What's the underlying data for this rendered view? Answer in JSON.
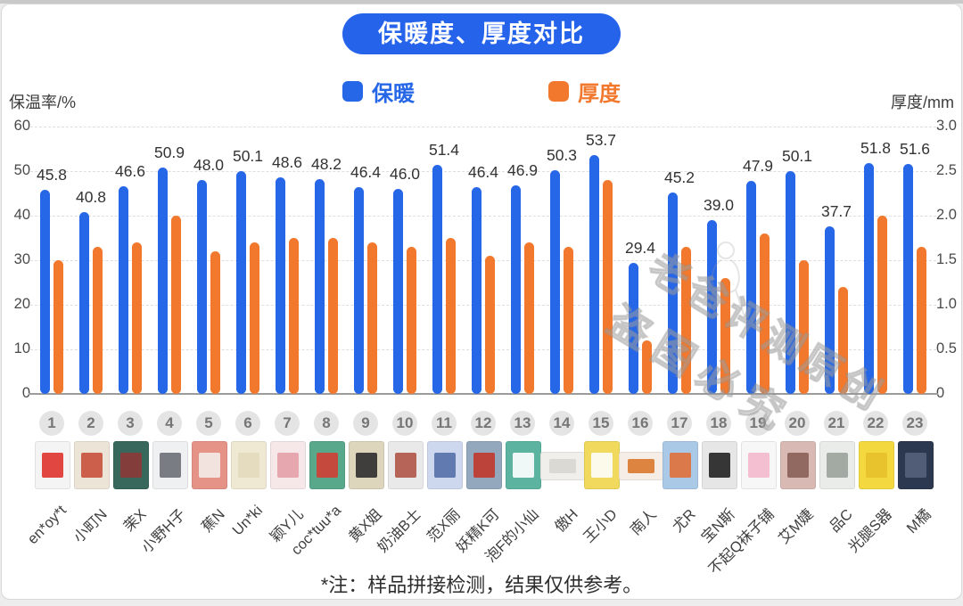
{
  "title": "保暖度、厚度对比",
  "title_bg": "#2563eb",
  "legend": [
    {
      "label": "保暖",
      "color": "#2667e8"
    },
    {
      "label": "厚度",
      "color": "#f2782d"
    }
  ],
  "axes": {
    "left": {
      "title": "保温率/%",
      "max": 60,
      "ticks": [
        "60",
        "50",
        "40",
        "30",
        "20",
        "10",
        "0"
      ]
    },
    "right": {
      "title": "厚度/mm",
      "max": 3.0,
      "ticks": [
        "3.0",
        "2.5",
        "2.0",
        "1.5",
        "1.0",
        "0.5",
        "0"
      ]
    }
  },
  "chart_data": {
    "type": "bar",
    "title": "保暖度、厚度对比",
    "categories": [
      "en*oy*t",
      "小町N",
      "茉X",
      "小野H子",
      "蕉N",
      "Un*ki",
      "颖Y儿",
      "coc*tuu*a",
      "黄X姐",
      "奶油B士",
      "范X丽",
      "妖精K可",
      "泡F的小仙",
      "傲H",
      "王小D",
      "南人",
      "尤R",
      "宝N斯",
      "不起Q袜子铺",
      "艾M婕",
      "品C",
      "光腿S器",
      "M橘"
    ],
    "series": [
      {
        "name": "保暖",
        "axis": "left",
        "unit": "%",
        "color": "#2667e8",
        "labels_shown": true,
        "values": [
          45.8,
          40.8,
          46.6,
          50.9,
          48.0,
          50.1,
          48.6,
          48.2,
          46.4,
          46.0,
          51.4,
          46.4,
          46.9,
          50.3,
          53.7,
          29.4,
          45.2,
          39.0,
          47.9,
          50.1,
          37.7,
          51.8,
          51.6
        ]
      },
      {
        "name": "厚度",
        "axis": "right",
        "unit": "mm",
        "color": "#f2782d",
        "labels_shown": false,
        "values": [
          1.5,
          1.65,
          1.7,
          2.0,
          1.6,
          1.7,
          1.75,
          1.75,
          1.7,
          1.65,
          1.75,
          1.55,
          1.7,
          1.65,
          2.4,
          0.6,
          1.65,
          1.3,
          1.8,
          1.5,
          1.2,
          2.0,
          1.65
        ]
      }
    ],
    "ylim_left": [
      0,
      60
    ],
    "ylim_right": [
      0,
      3.0
    ],
    "grid": "dashed horizontal",
    "legend_position": "top center"
  },
  "products": [
    {
      "index": "1",
      "name": "en*oy*t",
      "thumb": {
        "bg": "#f4f4f4",
        "accent": "#e0332e",
        "wide": false
      }
    },
    {
      "index": "2",
      "name": "小町N",
      "thumb": {
        "bg": "#ece4d6",
        "accent": "#c9503c",
        "wide": false
      }
    },
    {
      "index": "3",
      "name": "茉X",
      "thumb": {
        "bg": "#38675b",
        "accent": "#8c3a38",
        "wide": false
      }
    },
    {
      "index": "4",
      "name": "小野H子",
      "thumb": {
        "bg": "#eef0f1",
        "accent": "#6b7077",
        "wide": false
      }
    },
    {
      "index": "5",
      "name": "蕉N",
      "thumb": {
        "bg": "#e69387",
        "accent": "#f3ece8",
        "wide": false
      }
    },
    {
      "index": "6",
      "name": "Un*ki",
      "thumb": {
        "bg": "#efe9d4",
        "accent": "#e3d9bd",
        "wide": false
      }
    },
    {
      "index": "7",
      "name": "颖Y儿",
      "thumb": {
        "bg": "#f6e8e8",
        "accent": "#e4a0a8",
        "wide": false
      }
    },
    {
      "index": "8",
      "name": "coc*tuu*a",
      "thumb": {
        "bg": "#58a88c",
        "accent": "#d23f34",
        "wide": false
      }
    },
    {
      "index": "9",
      "name": "黄X姐",
      "thumb": {
        "bg": "#ddd5bc",
        "accent": "#2e2e2e",
        "wide": false
      }
    },
    {
      "index": "10",
      "name": "奶油B士",
      "thumb": {
        "bg": "#e9e9e9",
        "accent": "#b05448",
        "wide": false
      }
    },
    {
      "index": "11",
      "name": "范X丽",
      "thumb": {
        "bg": "#cdd8ee",
        "accent": "#5570a8",
        "wide": false
      }
    },
    {
      "index": "12",
      "name": "妖精K可",
      "thumb": {
        "bg": "#93a7bd",
        "accent": "#c0392b",
        "wide": false
      }
    },
    {
      "index": "13",
      "name": "泡F的小仙",
      "thumb": {
        "bg": "#5cb3a0",
        "accent": "#ffffff",
        "wide": false
      }
    },
    {
      "index": "14",
      "name": "傲H",
      "thumb": {
        "bg": "#f0efeb",
        "accent": "#d8d6d0",
        "wide": true
      }
    },
    {
      "index": "15",
      "name": "王小D",
      "thumb": {
        "bg": "#f0d95c",
        "accent": "#fdfdfb",
        "wide": false
      }
    },
    {
      "index": "16",
      "name": "南人",
      "thumb": {
        "bg": "#f6eee6",
        "accent": "#d9782e",
        "wide": true
      }
    },
    {
      "index": "17",
      "name": "尤R",
      "thumb": {
        "bg": "#a9c9e6",
        "accent": "#e0703a",
        "wide": false
      }
    },
    {
      "index": "18",
      "name": "宝N斯",
      "thumb": {
        "bg": "#e6e6e6",
        "accent": "#222222",
        "wide": false
      }
    },
    {
      "index": "19",
      "name": "不起Q袜子铺",
      "thumb": {
        "bg": "#f7f7f7",
        "accent": "#f2b8cc",
        "wide": false
      }
    },
    {
      "index": "20",
      "name": "艾M婕",
      "thumb": {
        "bg": "#d9b9b4",
        "accent": "#8a6058",
        "wide": false
      }
    },
    {
      "index": "21",
      "name": "品C",
      "thumb": {
        "bg": "#eaece9",
        "accent": "#9aa39b",
        "wide": false
      }
    },
    {
      "index": "22",
      "name": "光腿S器",
      "thumb": {
        "bg": "#f3d83f",
        "accent": "#e8c12c",
        "wide": false
      }
    },
    {
      "index": "23",
      "name": "M橘",
      "thumb": {
        "bg": "#2c3850",
        "accent": "#55617a",
        "wide": false
      }
    }
  ],
  "note": "*注：样品拼接检测，结果仅供参考。",
  "watermark": {
    "line1": "老爸评测原创",
    "line2": "盗图必究"
  }
}
